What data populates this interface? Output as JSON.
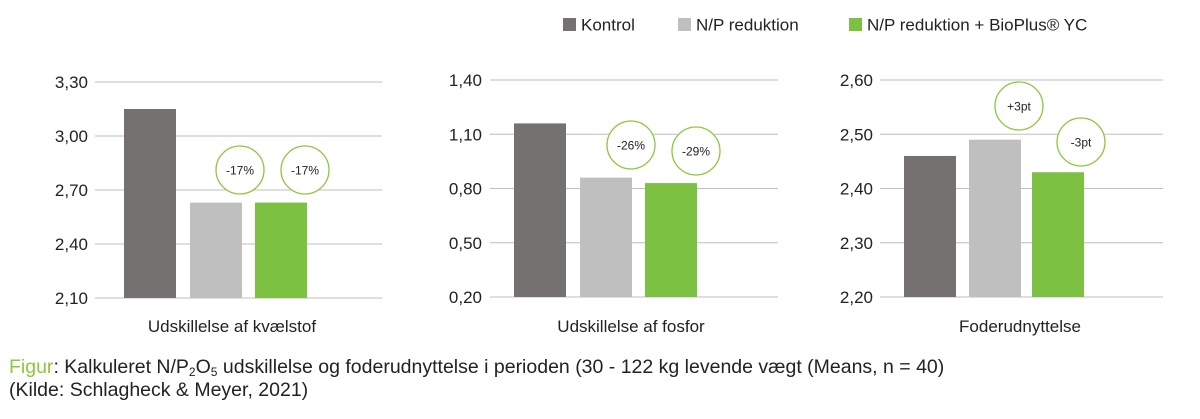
{
  "colors": {
    "kontrol": "#767171",
    "np": "#bfbfbf",
    "np_bioplus": "#7cc142",
    "badge": "#8dc63f",
    "axis": "#bfbfbf",
    "text": "#222222",
    "figure_label": "#8dc63f"
  },
  "legend": {
    "items": [
      {
        "label": "Kontrol",
        "color": "#767171"
      },
      {
        "label": "N/P reduktion",
        "color": "#bfbfbf"
      },
      {
        "label": "N/P reduktion + BioPlus® YC",
        "color": "#7cc142"
      }
    ]
  },
  "chart_data": [
    {
      "type": "bar",
      "xlabel": "Udskillelse af kvælstof",
      "series": [
        {
          "name": "Kontrol",
          "values": [
            3.15
          ]
        },
        {
          "name": "N/P reduktion",
          "values": [
            2.63
          ]
        },
        {
          "name": "N/P reduktion + BioPlus® YC",
          "values": [
            2.63
          ]
        }
      ],
      "ylim": [
        2.1,
        3.3
      ],
      "yticks": [
        "3,30",
        "3,00",
        "2,70",
        "2,40",
        "2,10"
      ],
      "yticks_values": [
        3.3,
        3.0,
        2.7,
        2.4,
        2.1
      ],
      "annotations": [
        "",
        "-17%",
        "-17%"
      ]
    },
    {
      "type": "bar",
      "xlabel": "Udskillelse af fosfor",
      "series": [
        {
          "name": "Kontrol",
          "values": [
            1.16
          ]
        },
        {
          "name": "N/P reduktion",
          "values": [
            0.86
          ]
        },
        {
          "name": "N/P reduktion + BioPlus® YC",
          "values": [
            0.83
          ]
        }
      ],
      "ylim": [
        0.2,
        1.4
      ],
      "yticks": [
        "1,40",
        "1,10",
        "0,80",
        "0,50",
        "0,20"
      ],
      "yticks_values": [
        1.4,
        1.1,
        0.8,
        0.5,
        0.2
      ],
      "annotations": [
        "",
        "-26%",
        "-29%"
      ]
    },
    {
      "type": "bar",
      "xlabel": "Foderudnyttelse",
      "series": [
        {
          "name": "Kontrol",
          "values": [
            2.46
          ]
        },
        {
          "name": "N/P reduktion",
          "values": [
            2.49
          ]
        },
        {
          "name": "N/P reduktion + BioPlus® YC",
          "values": [
            2.43
          ]
        }
      ],
      "ylim": [
        2.2,
        2.6
      ],
      "yticks": [
        "2,60",
        "2,50",
        "2,40",
        "2,30",
        "2,20"
      ],
      "yticks_values": [
        2.6,
        2.5,
        2.4,
        2.3,
        2.2
      ],
      "annotations": [
        "",
        "+3pt",
        "-3pt"
      ]
    }
  ],
  "caption": {
    "figure_label": "Figur",
    "line1_a": ": Kalkuleret N/P",
    "line1_sub1": "2",
    "line1_b": "O",
    "line1_sub2": "5",
    "line1_c": " udskillelse og foderudnyttelse i perioden (30 - 122 kg levende vægt (Means, n = 40)",
    "line2": "(Kilde: Schlagheck & Meyer, 2021)"
  }
}
